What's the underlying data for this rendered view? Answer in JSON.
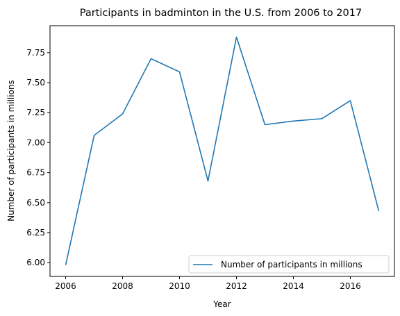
{
  "chart_data": {
    "type": "line",
    "title": "Participants in badminton in the U.S. from 2006 to 2017",
    "xlabel": "Year",
    "ylabel": "Number of participants in millions",
    "x": [
      2006,
      2007,
      2008,
      2009,
      2010,
      2011,
      2012,
      2013,
      2014,
      2015,
      2016,
      2017
    ],
    "series": [
      {
        "name": "Number of participants in millions",
        "color": "#1f77b4",
        "values": [
          5.98,
          7.06,
          7.24,
          7.7,
          7.59,
          6.68,
          7.88,
          7.15,
          7.18,
          7.2,
          7.35,
          6.43
        ]
      }
    ],
    "xlim": [
      2005.45,
      2017.55
    ],
    "ylim": [
      5.885,
      7.975
    ],
    "xticks": [
      2006,
      2008,
      2010,
      2012,
      2014,
      2016
    ],
    "xtick_labels": [
      "2006",
      "2008",
      "2010",
      "2012",
      "2014",
      "2016"
    ],
    "yticks": [
      6.0,
      6.25,
      6.5,
      6.75,
      7.0,
      7.25,
      7.5,
      7.75
    ],
    "ytick_labels": [
      "6.00",
      "6.25",
      "6.50",
      "6.75",
      "7.00",
      "7.25",
      "7.50",
      "7.75"
    ],
    "grid": false,
    "legend_position": "lower-right"
  }
}
